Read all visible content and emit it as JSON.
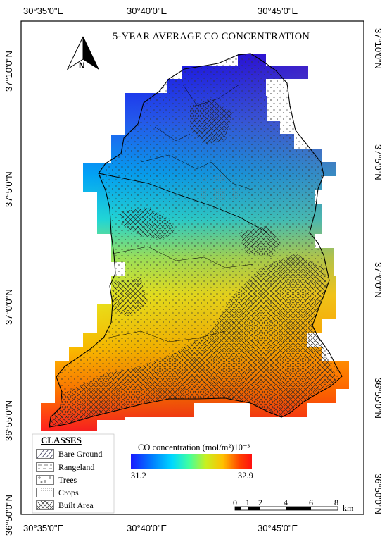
{
  "title": "5-YEAR AVERAGE CO CONCENTRATION",
  "north_label": "N",
  "longitude_ticks": [
    "30°35'0\"E",
    "30°40'0\"E",
    "30°45'0\"E"
  ],
  "latitude_ticks": [
    "37°10'0\"N",
    "37°5'0\"N",
    "37°0'0\"N",
    "36°55'0\"N",
    "36°50'0\"N"
  ],
  "legend": {
    "heading": "CLASSES",
    "items": [
      {
        "label": "Bare Ground",
        "pattern": "diagonal-hatch"
      },
      {
        "label": "Rangeland",
        "pattern": "dash-dot"
      },
      {
        "label": "Trees",
        "pattern": "small-circles"
      },
      {
        "label": "Crops",
        "pattern": "dots"
      },
      {
        "label": "Built Area",
        "pattern": "cross-hatch"
      }
    ]
  },
  "colorbar": {
    "title": "CO concentration (mol/m²)10⁻³",
    "min": "31.2",
    "max": "32.9",
    "colors": [
      "#1a1aff",
      "#0080ff",
      "#00d8ff",
      "#40ffa0",
      "#c8f020",
      "#ffc000",
      "#ff4000",
      "#ff1010"
    ]
  },
  "scale_bar": {
    "labels": [
      "0",
      "1",
      "2",
      "4",
      "6",
      "8"
    ],
    "unit": "km"
  }
}
